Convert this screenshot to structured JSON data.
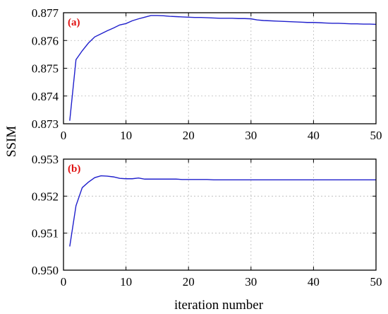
{
  "chart_data": [
    {
      "type": "line",
      "panel_label": "(a)",
      "xlabel": "iteration number",
      "ylabel": "SSIM",
      "xlim": [
        0,
        50
      ],
      "ylim": [
        0.873,
        0.877
      ],
      "xticks": [
        "0",
        "10",
        "20",
        "30",
        "40",
        "50"
      ],
      "yticks": [
        "0.873",
        "0.874",
        "0.875",
        "0.876",
        "0.877"
      ],
      "grid": true,
      "series": [
        {
          "color": "#1f1fcc",
          "x": [
            1,
            2,
            3,
            4,
            5,
            6,
            7,
            8,
            9,
            10,
            11,
            12,
            13,
            14,
            15,
            16,
            17,
            18,
            19,
            20,
            21,
            22,
            23,
            24,
            25,
            26,
            27,
            28,
            29,
            30,
            31,
            32,
            33,
            34,
            35,
            36,
            37,
            38,
            39,
            40,
            41,
            42,
            43,
            44,
            45,
            46,
            47,
            48,
            49,
            50
          ],
          "y": [
            0.87311,
            0.87531,
            0.87563,
            0.87591,
            0.87613,
            0.87624,
            0.87635,
            0.87645,
            0.87656,
            0.87661,
            0.87671,
            0.87678,
            0.87684,
            0.8769,
            0.8769,
            0.87689,
            0.87687,
            0.87686,
            0.87685,
            0.87684,
            0.87683,
            0.87683,
            0.87682,
            0.87681,
            0.8768,
            0.8768,
            0.8768,
            0.87679,
            0.87679,
            0.87678,
            0.87674,
            0.87672,
            0.87671,
            0.8767,
            0.87669,
            0.87668,
            0.87667,
            0.87666,
            0.87665,
            0.87665,
            0.87664,
            0.87663,
            0.87662,
            0.87662,
            0.87661,
            0.8766,
            0.8766,
            0.87659,
            0.87659,
            0.87658
          ]
        }
      ]
    },
    {
      "type": "line",
      "panel_label": "(b)",
      "xlabel": "iteration number",
      "ylabel": "SSIM",
      "xlim": [
        0,
        50
      ],
      "ylim": [
        0.95,
        0.953
      ],
      "xticks": [
        "0",
        "10",
        "20",
        "30",
        "40",
        "50"
      ],
      "yticks": [
        "0.950",
        "0.951",
        "0.952",
        "0.953"
      ],
      "grid": true,
      "series": [
        {
          "color": "#1f1fcc",
          "x": [
            1,
            2,
            3,
            4,
            5,
            6,
            7,
            8,
            9,
            10,
            11,
            12,
            13,
            14,
            15,
            16,
            17,
            18,
            19,
            20,
            21,
            22,
            23,
            24,
            25,
            26,
            27,
            28,
            29,
            30,
            31,
            32,
            33,
            34,
            35,
            36,
            37,
            38,
            39,
            40,
            41,
            42,
            43,
            44,
            45,
            46,
            47,
            48,
            49,
            50
          ],
          "y": [
            0.95064,
            0.95174,
            0.95223,
            0.95238,
            0.9525,
            0.95255,
            0.95254,
            0.95252,
            0.95248,
            0.95247,
            0.95247,
            0.95249,
            0.95246,
            0.95246,
            0.95246,
            0.95246,
            0.95246,
            0.95246,
            0.95245,
            0.95245,
            0.95245,
            0.95245,
            0.95245,
            0.95244,
            0.95244,
            0.95244,
            0.95244,
            0.95244,
            0.95244,
            0.95244,
            0.95244,
            0.95244,
            0.95244,
            0.95244,
            0.95244,
            0.95244,
            0.95244,
            0.95244,
            0.95244,
            0.95244,
            0.95244,
            0.95244,
            0.95244,
            0.95244,
            0.95244,
            0.95244,
            0.95244,
            0.95244,
            0.95244,
            0.95244
          ]
        }
      ]
    }
  ],
  "colors": {
    "series": "#1f1fcc",
    "panel_label": "#e01010"
  }
}
